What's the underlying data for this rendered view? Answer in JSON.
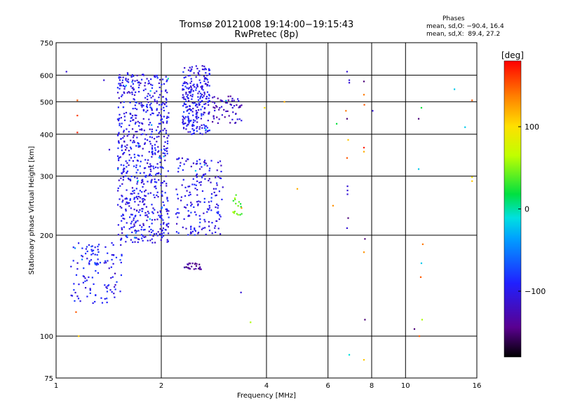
{
  "chart_data": {
    "type": "scatter",
    "title": "Tromsø 20121008 19:14:00−19:15:43",
    "subtitle": "RwPretec (8p)",
    "xlabel": "Frequency [MHz]",
    "ylabel": "Stationary phase Virtual Height [km]",
    "xscale": "log2",
    "yscale": "log",
    "xlim": [
      1,
      16
    ],
    "ylim": [
      75,
      750
    ],
    "xticks": [
      1,
      2,
      4,
      6,
      8,
      10,
      16
    ],
    "xtick_labels": [
      "1",
      "2",
      "4",
      "6",
      "8",
      "10",
      "16"
    ],
    "yticks": [
      75,
      100,
      200,
      300,
      400,
      500,
      600,
      750
    ],
    "ytick_labels": [
      "75",
      "100",
      "200",
      "300",
      "400",
      "500",
      "600",
      "750"
    ],
    "grid": true,
    "legend": {
      "title": "Phases",
      "lines": [
        "mean, sd,O: −90.4, 16.4",
        "mean, sd,X:  89.4, 27.2"
      ],
      "placement": "top-right"
    },
    "colorbar": {
      "label": "[deg]",
      "range": [
        -180,
        180
      ],
      "ticks": [
        100,
        0,
        -100
      ],
      "tick_labels": [
        "100",
        "0",
        "−100"
      ],
      "colormap": "rainbow (black→purple→blue→cyan→green→yellow→orange→red)"
    },
    "clusters": [
      {
        "name": "low-frequency E/F1 trace",
        "x": [
          1.1,
          1.55
        ],
        "y": [
          125,
          190
        ],
        "phase": -95,
        "count": 120
      },
      {
        "name": "F-layer trace 1.5–2.1 MHz",
        "x": [
          1.5,
          2.1
        ],
        "y": [
          190,
          610
        ],
        "phase": -100,
        "count": 700
      },
      {
        "name": "F-layer trace 2.3–2.75 MHz",
        "x": [
          2.3,
          2.75
        ],
        "y": [
          400,
          640
        ],
        "phase": -100,
        "count": 260
      },
      {
        "name": "mid-height echoes 2.2–3.0 MHz",
        "x": [
          2.2,
          3.0
        ],
        "y": [
          200,
          340
        ],
        "phase": -100,
        "count": 180
      },
      {
        "name": "high echoes 2.8–3.4 MHz",
        "x": [
          2.8,
          3.4
        ],
        "y": [
          430,
          520
        ],
        "phase": -120,
        "count": 60
      },
      {
        "name": "dark trace near 2.4 MHz",
        "x": [
          2.3,
          2.6
        ],
        "y": [
          158,
          165
        ],
        "phase": -140,
        "count": 25
      },
      {
        "name": "greenish echoes near 3.3 MHz",
        "x": [
          3.2,
          3.4
        ],
        "y": [
          230,
          265
        ],
        "phase": 40,
        "count": 18
      }
    ],
    "points": [
      {
        "x": 1.07,
        "y": 615,
        "phase": -110
      },
      {
        "x": 1.15,
        "y": 505,
        "phase": 150
      },
      {
        "x": 1.15,
        "y": 455,
        "phase": 160
      },
      {
        "x": 1.15,
        "y": 405,
        "phase": 170
      },
      {
        "x": 1.37,
        "y": 580,
        "phase": -110
      },
      {
        "x": 1.42,
        "y": 360,
        "phase": -110
      },
      {
        "x": 1.14,
        "y": 118,
        "phase": 150
      },
      {
        "x": 1.16,
        "y": 100,
        "phase": 110
      },
      {
        "x": 3.38,
        "y": 135,
        "phase": -110
      },
      {
        "x": 3.6,
        "y": 110,
        "phase": 60
      },
      {
        "x": 3.95,
        "y": 480,
        "phase": 100
      },
      {
        "x": 4.5,
        "y": 500,
        "phase": 120
      },
      {
        "x": 4.9,
        "y": 275,
        "phase": 120
      },
      {
        "x": 6.2,
        "y": 245,
        "phase": 130
      },
      {
        "x": 6.35,
        "y": 430,
        "phase": 20
      },
      {
        "x": 6.8,
        "y": 615,
        "phase": -110
      },
      {
        "x": 6.9,
        "y": 580,
        "phase": -110
      },
      {
        "x": 6.9,
        "y": 570,
        "phase": -110
      },
      {
        "x": 6.75,
        "y": 470,
        "phase": 140
      },
      {
        "x": 6.8,
        "y": 445,
        "phase": -150
      },
      {
        "x": 6.85,
        "y": 385,
        "phase": 110
      },
      {
        "x": 6.8,
        "y": 340,
        "phase": 150
      },
      {
        "x": 6.82,
        "y": 280,
        "phase": -110
      },
      {
        "x": 6.82,
        "y": 272,
        "phase": -110
      },
      {
        "x": 6.82,
        "y": 265,
        "phase": -110
      },
      {
        "x": 6.85,
        "y": 225,
        "phase": -150
      },
      {
        "x": 6.8,
        "y": 210,
        "phase": -110
      },
      {
        "x": 6.9,
        "y": 88,
        "phase": -10
      },
      {
        "x": 7.6,
        "y": 575,
        "phase": -150
      },
      {
        "x": 7.6,
        "y": 525,
        "phase": 140
      },
      {
        "x": 7.62,
        "y": 490,
        "phase": 150
      },
      {
        "x": 7.6,
        "y": 365,
        "phase": 170
      },
      {
        "x": 7.6,
        "y": 355,
        "phase": 120
      },
      {
        "x": 7.65,
        "y": 195,
        "phase": -150
      },
      {
        "x": 7.6,
        "y": 178,
        "phase": 130
      },
      {
        "x": 7.65,
        "y": 112,
        "phase": -150
      },
      {
        "x": 7.6,
        "y": 85,
        "phase": 110
      },
      {
        "x": 8.05,
        "y": 470,
        "phase": -110
      },
      {
        "x": 10.6,
        "y": 105,
        "phase": -150
      },
      {
        "x": 10.9,
        "y": 445,
        "phase": -150
      },
      {
        "x": 11.1,
        "y": 480,
        "phase": 20
      },
      {
        "x": 10.9,
        "y": 315,
        "phase": -20
      },
      {
        "x": 11.2,
        "y": 188,
        "phase": 140
      },
      {
        "x": 11.1,
        "y": 165,
        "phase": -20
      },
      {
        "x": 11.05,
        "y": 150,
        "phase": 150
      },
      {
        "x": 11.15,
        "y": 112,
        "phase": 60
      },
      {
        "x": 10.95,
        "y": 100,
        "phase": 150
      },
      {
        "x": 13.8,
        "y": 545,
        "phase": -20
      },
      {
        "x": 14.8,
        "y": 420,
        "phase": -20
      },
      {
        "x": 15.5,
        "y": 505,
        "phase": 150
      },
      {
        "x": 15.5,
        "y": 298,
        "phase": 100
      },
      {
        "x": 15.5,
        "y": 290,
        "phase": 110
      }
    ]
  }
}
